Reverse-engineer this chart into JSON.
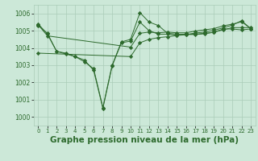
{
  "bg_color": "#cce8d8",
  "grid_color": "#aaccb8",
  "line_color": "#2d6a2d",
  "xlabel": "Graphe pression niveau de la mer (hPa)",
  "xlabel_fontsize": 7.5,
  "ylim": [
    999.5,
    1006.5
  ],
  "xlim": [
    -0.5,
    23.5
  ],
  "yticks": [
    1000,
    1001,
    1002,
    1003,
    1004,
    1005,
    1006
  ],
  "xticks": [
    0,
    1,
    2,
    3,
    4,
    5,
    6,
    7,
    8,
    9,
    10,
    11,
    12,
    13,
    14,
    15,
    16,
    17,
    18,
    19,
    20,
    21,
    22,
    23
  ],
  "series": [
    [
      1005.4,
      1004.8,
      1003.8,
      1003.7,
      1003.5,
      1003.3,
      1002.7,
      1000.5,
      1002.95,
      1004.3,
      1004.4,
      1005.5,
      1005.0,
      1004.8,
      1004.8,
      1004.75,
      1004.8,
      1004.8,
      1004.85,
      1004.9,
      1005.1,
      1005.1,
      1005.05,
      1005.1
    ],
    [
      1005.3,
      1004.85,
      1003.8,
      1003.65,
      1003.5,
      1003.2,
      1002.8,
      1000.55,
      1003.0,
      1004.35,
      1004.5,
      1006.05,
      1005.5,
      1005.3,
      1004.85,
      1004.8,
      1004.78,
      1004.78,
      1004.82,
      1004.92,
      1005.05,
      1005.18,
      1005.18,
      1005.18
    ],
    [
      1005.35,
      1004.7,
      null,
      null,
      null,
      null,
      null,
      null,
      null,
      null,
      1004.05,
      1004.85,
      1004.92,
      1004.88,
      1004.92,
      1004.88,
      1004.88,
      1004.98,
      1005.05,
      1005.12,
      1005.28,
      1005.38,
      1005.52,
      1005.12
    ],
    [
      1003.7,
      null,
      null,
      null,
      null,
      null,
      null,
      null,
      null,
      null,
      1003.5,
      1004.3,
      1004.5,
      1004.6,
      1004.65,
      1004.72,
      1004.77,
      1004.87,
      1004.92,
      1005.02,
      1005.17,
      1005.32,
      1005.58,
      1005.12
    ]
  ]
}
